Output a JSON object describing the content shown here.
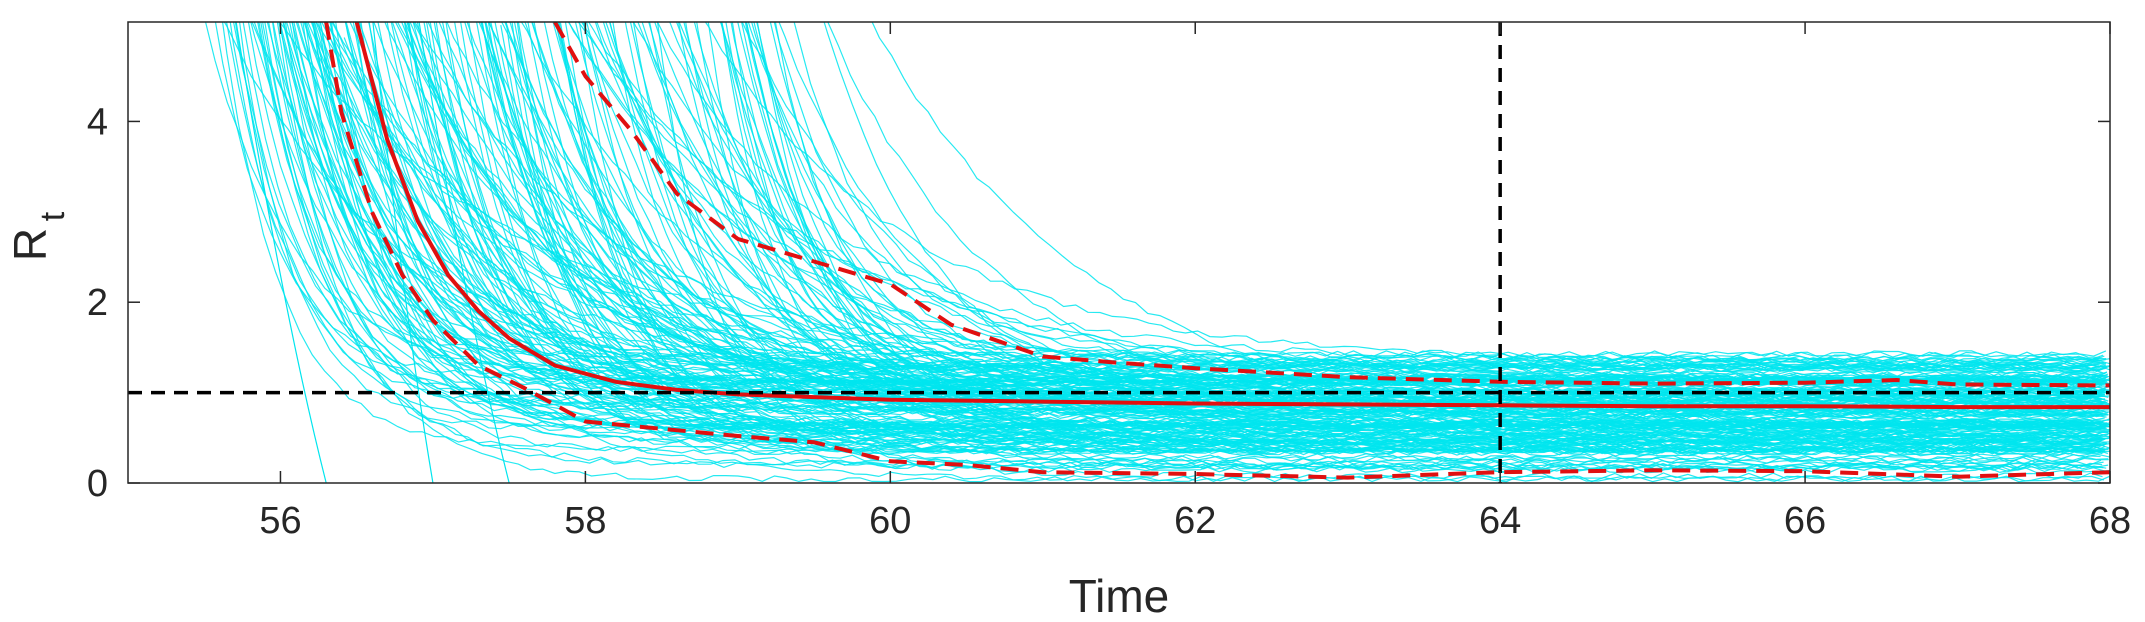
{
  "chart_data": {
    "type": "line",
    "title": "",
    "xlabel": "Time",
    "ylabel": "R",
    "ylabel_subscript": "t",
    "xlim": [
      55,
      68
    ],
    "ylim": [
      0,
      5.1
    ],
    "xticks": [
      56,
      58,
      60,
      62,
      64,
      66,
      68
    ],
    "xtick_labels": [
      "56",
      "58",
      "60",
      "62",
      "64",
      "66",
      "68"
    ],
    "yticks": [
      0,
      2,
      4
    ],
    "ytick_labels": [
      "0",
      "2",
      "4"
    ],
    "grid": false,
    "legend": "none",
    "reference_lines": {
      "horizontal_y": 1,
      "vertical_x": 64
    },
    "series": [
      {
        "role": "median",
        "style": "solid",
        "color": "#e01010",
        "x": [
          56.5,
          56.7,
          56.9,
          57.1,
          57.3,
          57.5,
          57.8,
          58.2,
          58.6,
          59.0,
          59.5,
          60.0,
          61.0,
          62.0,
          63.0,
          64.0,
          65.0,
          66.0,
          67.0,
          68.0
        ],
        "y": [
          5.1,
          3.8,
          2.9,
          2.3,
          1.9,
          1.6,
          1.3,
          1.12,
          1.03,
          0.98,
          0.95,
          0.92,
          0.9,
          0.88,
          0.87,
          0.86,
          0.85,
          0.85,
          0.84,
          0.84
        ]
      },
      {
        "role": "upper-bound",
        "style": "dashed",
        "color": "#e01010",
        "x": [
          57.8,
          58.0,
          58.1,
          58.3,
          58.6,
          59.0,
          59.5,
          60.0,
          60.4,
          61.0,
          61.5,
          62.0,
          63.0,
          64.0,
          65.0,
          66.0,
          66.6,
          67.0,
          68.0
        ],
        "y": [
          5.1,
          4.5,
          4.3,
          3.9,
          3.2,
          2.7,
          2.45,
          2.2,
          1.75,
          1.4,
          1.33,
          1.27,
          1.17,
          1.12,
          1.1,
          1.11,
          1.14,
          1.09,
          1.08
        ]
      },
      {
        "role": "lower-bound",
        "style": "dashed",
        "color": "#e01010",
        "x": [
          56.3,
          56.4,
          56.6,
          56.8,
          57.0,
          57.3,
          57.6,
          58.0,
          58.5,
          59.0,
          59.5,
          60.0,
          60.5,
          61.0,
          62.0,
          63.0,
          64.0,
          65.0,
          66.0,
          67.0,
          68.0
        ],
        "y": [
          5.1,
          4.1,
          3.0,
          2.3,
          1.8,
          1.3,
          1.05,
          0.68,
          0.6,
          0.52,
          0.45,
          0.24,
          0.2,
          0.12,
          0.1,
          0.06,
          0.12,
          0.14,
          0.13,
          0.07,
          0.12
        ]
      }
    ],
    "ensemble": {
      "color": "#00e5ee",
      "description_count_visible": "many"
    }
  }
}
